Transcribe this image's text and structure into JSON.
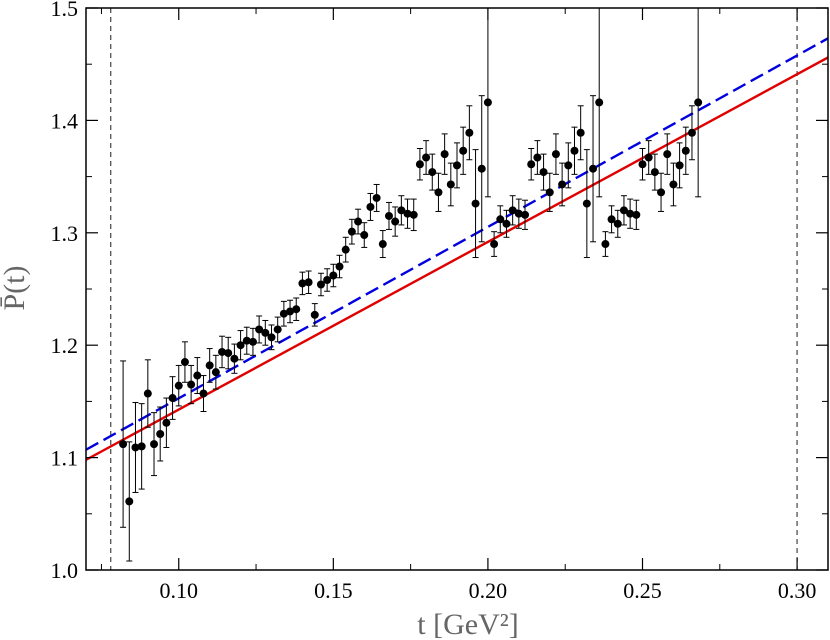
{
  "chart_data": {
    "type": "scatter",
    "xlabel": "t [GeV²]",
    "ylabel": "P̄(t)",
    "xlim": [
      0.07,
      0.31
    ],
    "ylim": [
      1.0,
      1.5
    ],
    "x_ticks": [
      0.1,
      0.15,
      0.2,
      0.25,
      0.3
    ],
    "x_tick_labels": [
      "0.10",
      "0.15",
      "0.20",
      "0.25",
      "0.30"
    ],
    "y_ticks": [
      1.0,
      1.1,
      1.2,
      1.3,
      1.4,
      1.5
    ],
    "y_tick_labels": [
      "1.0",
      "1.1",
      "1.2",
      "1.3",
      "1.4",
      "1.5"
    ],
    "grid": false,
    "vertical_reference_lines": [
      0.078,
      0.3
    ],
    "series": [
      {
        "type": "scatter-errorbar",
        "color": "#000000",
        "x": [
          0.082,
          0.084,
          0.086,
          0.088,
          0.09,
          0.092,
          0.094,
          0.096,
          0.098,
          0.1,
          0.102,
          0.104,
          0.106,
          0.108,
          0.11,
          0.112,
          0.114,
          0.116,
          0.118,
          0.12,
          0.122,
          0.124,
          0.126,
          0.128,
          0.13,
          0.132,
          0.134,
          0.136,
          0.138,
          0.14,
          0.142,
          0.144,
          0.146,
          0.148,
          0.15,
          0.152,
          0.154,
          0.156,
          0.158,
          0.16,
          0.162,
          0.164,
          0.166,
          0.168,
          0.17,
          0.172,
          0.174,
          0.176,
          0.178,
          0.18,
          0.182,
          0.184,
          0.186,
          0.188,
          0.19,
          0.192,
          0.194,
          0.196,
          0.198,
          0.2,
          0.202,
          0.204,
          0.206,
          0.208,
          0.21,
          0.212,
          0.214,
          0.216,
          0.218,
          0.22,
          0.222,
          0.224,
          0.226,
          0.228,
          0.23,
          0.232,
          0.234,
          0.236,
          0.238,
          0.24,
          0.242,
          0.244,
          0.246,
          0.248,
          0.25,
          0.252,
          0.254,
          0.256,
          0.258,
          0.26,
          0.262,
          0.264,
          0.266,
          0.268
        ],
        "y": [
          1.112,
          1.061,
          1.109,
          1.11,
          1.157,
          1.112,
          1.121,
          1.131,
          1.153,
          1.164,
          1.185,
          1.165,
          1.173,
          1.157,
          1.182,
          1.176,
          1.194,
          1.193,
          1.188,
          1.2,
          1.204,
          1.203,
          1.214,
          1.211,
          1.207,
          1.214,
          1.228,
          1.23,
          1.232,
          1.255,
          1.256,
          1.227,
          1.254,
          1.258,
          1.262,
          1.27,
          1.285,
          1.301,
          1.31,
          1.298,
          1.323,
          1.331,
          1.29,
          1.315,
          1.31,
          1.32,
          1.317,
          1.316,
          1.361,
          1.367,
          1.354,
          1.336,
          1.37,
          1.343,
          1.36,
          1.373,
          1.389,
          1.326,
          1.357,
          1.416,
          1.29,
          1.312,
          1.308,
          1.32,
          1.317,
          1.316,
          1.361,
          1.367,
          1.354,
          1.336,
          1.37,
          1.343,
          1.36,
          1.373,
          1.389,
          1.326,
          1.357,
          1.416,
          1.29,
          1.312,
          1.308,
          1.32,
          1.317,
          1.316,
          1.361,
          1.367,
          1.354,
          1.336,
          1.37,
          1.343,
          1.36,
          1.373,
          1.389,
          1.416
        ],
        "err": [
          0.074,
          0.053,
          0.04,
          0.038,
          0.03,
          0.028,
          0.024,
          0.022,
          0.019,
          0.018,
          0.018,
          0.017,
          0.016,
          0.016,
          0.015,
          0.015,
          0.014,
          0.014,
          0.013,
          0.013,
          0.012,
          0.012,
          0.012,
          0.011,
          0.011,
          0.011,
          0.011,
          0.01,
          0.01,
          0.01,
          0.01,
          0.01,
          0.01,
          0.01,
          0.01,
          0.01,
          0.011,
          0.011,
          0.011,
          0.011,
          0.012,
          0.012,
          0.012,
          0.012,
          0.013,
          0.013,
          0.013,
          0.014,
          0.014,
          0.015,
          0.016,
          0.017,
          0.018,
          0.019,
          0.02,
          0.021,
          0.024,
          0.048,
          0.065,
          0.084,
          0.011,
          0.012,
          0.012,
          0.013,
          0.013,
          0.013,
          0.014,
          0.015,
          0.016,
          0.017,
          0.018,
          0.019,
          0.02,
          0.021,
          0.024,
          0.048,
          0.065,
          0.084,
          0.011,
          0.012,
          0.012,
          0.013,
          0.013,
          0.013,
          0.014,
          0.015,
          0.016,
          0.017,
          0.018,
          0.019,
          0.02,
          0.021,
          0.024,
          0.084
        ]
      },
      {
        "type": "line",
        "style": "dashed",
        "color": "#0000e0",
        "x": [
          0.07,
          0.31
        ],
        "y": [
          1.107,
          1.473
        ]
      },
      {
        "type": "line",
        "style": "solid",
        "color": "#e00000",
        "x": [
          0.07,
          0.31
        ],
        "y": [
          1.098,
          1.456
        ]
      }
    ]
  }
}
